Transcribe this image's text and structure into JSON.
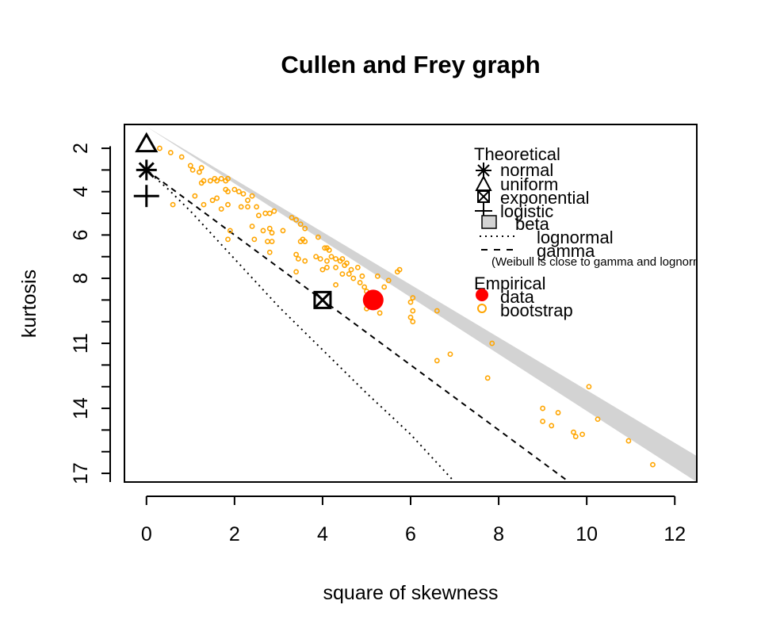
{
  "chart_data": {
    "type": "scatter",
    "title": "Cullen and Frey graph",
    "xlabel": "square of skewness",
    "ylabel": "kurtosis",
    "xlim": [
      -0.5,
      12.5
    ],
    "ylim": [
      17.4,
      0.9
    ],
    "x_ticks": [
      0,
      2,
      4,
      6,
      8,
      10,
      12
    ],
    "y_ticks": [
      2,
      4,
      6,
      8,
      11,
      14,
      17
    ],
    "y_minor_ticks": [
      3,
      5,
      7,
      9,
      10,
      12,
      13,
      15,
      16
    ],
    "beta_region": {
      "upper": [
        [
          0,
          1
        ],
        [
          12.5,
          16.2
        ]
      ],
      "lower": [
        [
          0,
          1
        ],
        [
          12.5,
          17.4
        ]
      ],
      "color": "#d3d3d3"
    },
    "lognormal_line": [
      [
        0,
        3
      ],
      [
        0.5,
        3.9
      ],
      [
        1,
        4.9
      ],
      [
        2,
        7.1
      ],
      [
        3,
        9.3
      ],
      [
        4,
        11.3
      ],
      [
        5,
        13.3
      ],
      [
        6,
        15.2
      ],
      [
        7,
        17.4
      ]
    ],
    "gamma_line": [
      [
        0,
        3
      ],
      [
        9.6,
        17.4
      ]
    ],
    "theoretical": {
      "normal": {
        "x": 0,
        "y": 3
      },
      "uniform": {
        "x": 0,
        "y": 1.8
      },
      "exponential": {
        "x": 4,
        "y": 9
      },
      "logistic": {
        "x": 0,
        "y": 4.2
      }
    },
    "observation": {
      "x": 5.15,
      "y": 9.0,
      "color": "#ff0000"
    },
    "bootstrap": {
      "color": "#ffa500",
      "points": [
        [
          0.3,
          2.0
        ],
        [
          0.55,
          2.2
        ],
        [
          0.8,
          2.4
        ],
        [
          1.0,
          2.8
        ],
        [
          1.05,
          3.0
        ],
        [
          1.2,
          3.1
        ],
        [
          1.25,
          2.9
        ],
        [
          1.25,
          3.6
        ],
        [
          1.3,
          3.5
        ],
        [
          1.45,
          3.5
        ],
        [
          1.55,
          3.4
        ],
        [
          1.6,
          3.5
        ],
        [
          1.7,
          3.4
        ],
        [
          1.8,
          3.5
        ],
        [
          1.85,
          3.4
        ],
        [
          1.8,
          3.9
        ],
        [
          1.85,
          4.0
        ],
        [
          2.0,
          3.9
        ],
        [
          2.1,
          4.0
        ],
        [
          2.2,
          4.1
        ],
        [
          2.3,
          4.4
        ],
        [
          2.4,
          4.2
        ],
        [
          2.15,
          4.7
        ],
        [
          2.3,
          4.7
        ],
        [
          2.5,
          4.7
        ],
        [
          2.55,
          5.1
        ],
        [
          2.7,
          5.0
        ],
        [
          2.8,
          5.0
        ],
        [
          2.9,
          4.9
        ],
        [
          0.6,
          4.6
        ],
        [
          1.5,
          4.4
        ],
        [
          1.6,
          4.3
        ],
        [
          1.7,
          4.8
        ],
        [
          1.85,
          4.6
        ],
        [
          1.1,
          4.2
        ],
        [
          1.3,
          4.6
        ],
        [
          1.9,
          5.8
        ],
        [
          1.85,
          6.2
        ],
        [
          2.4,
          5.6
        ],
        [
          2.45,
          6.2
        ],
        [
          2.65,
          5.8
        ],
        [
          2.8,
          5.7
        ],
        [
          2.85,
          5.9
        ],
        [
          2.75,
          6.3
        ],
        [
          2.85,
          6.3
        ],
        [
          2.8,
          6.8
        ],
        [
          3.1,
          5.8
        ],
        [
          3.3,
          5.2
        ],
        [
          3.4,
          5.3
        ],
        [
          3.5,
          5.5
        ],
        [
          3.6,
          5.7
        ],
        [
          3.5,
          6.3
        ],
        [
          3.55,
          6.2
        ],
        [
          3.6,
          6.3
        ],
        [
          3.4,
          6.9
        ],
        [
          3.45,
          7.1
        ],
        [
          3.6,
          7.2
        ],
        [
          3.4,
          7.7
        ],
        [
          3.9,
          6.1
        ],
        [
          4.05,
          6.6
        ],
        [
          4.1,
          6.6
        ],
        [
          4.15,
          6.7
        ],
        [
          3.85,
          7.0
        ],
        [
          3.95,
          7.1
        ],
        [
          4.1,
          7.2
        ],
        [
          4.2,
          7.0
        ],
        [
          4.3,
          7.1
        ],
        [
          4.4,
          7.2
        ],
        [
          4.45,
          7.1
        ],
        [
          4.5,
          7.4
        ],
        [
          4.55,
          7.3
        ],
        [
          4.0,
          7.6
        ],
        [
          4.1,
          7.5
        ],
        [
          4.3,
          7.5
        ],
        [
          4.45,
          7.8
        ],
        [
          4.6,
          7.8
        ],
        [
          4.65,
          7.6
        ],
        [
          4.8,
          7.5
        ],
        [
          4.7,
          8.0
        ],
        [
          4.9,
          7.9
        ],
        [
          4.85,
          8.2
        ],
        [
          4.95,
          8.4
        ],
        [
          5.0,
          8.6
        ],
        [
          5.25,
          7.9
        ],
        [
          5.4,
          8.4
        ],
        [
          5.5,
          8.1
        ],
        [
          5.7,
          7.7
        ],
        [
          5.75,
          7.6
        ],
        [
          4.3,
          8.3
        ],
        [
          5.0,
          9.4
        ],
        [
          5.3,
          9.6
        ],
        [
          6.0,
          9.1
        ],
        [
          6.05,
          8.9
        ],
        [
          6.05,
          9.5
        ],
        [
          6.0,
          9.8
        ],
        [
          6.05,
          10.0
        ],
        [
          6.6,
          9.5
        ],
        [
          7.85,
          11.0
        ],
        [
          6.6,
          11.8
        ],
        [
          6.9,
          11.5
        ],
        [
          7.75,
          12.6
        ],
        [
          9.0,
          14.0
        ],
        [
          9.0,
          14.6
        ],
        [
          9.2,
          14.8
        ],
        [
          9.35,
          14.2
        ],
        [
          9.7,
          15.1
        ],
        [
          9.75,
          15.3
        ],
        [
          9.9,
          15.2
        ],
        [
          10.05,
          13.0
        ],
        [
          10.25,
          14.5
        ],
        [
          10.95,
          15.5
        ],
        [
          11.5,
          16.6
        ]
      ]
    },
    "legend": {
      "position": "top-right",
      "theoretical_title": "Theoretical",
      "normal_label": "normal",
      "uniform_label": "uniform",
      "exponential_label": "exponential",
      "logistic_label": "logistic",
      "beta_label": "beta",
      "lognormal_label": "lognormal",
      "gamma_label": "gamma",
      "note": "(Weibull is close to gamma and lognormal)",
      "empirical_title": "Empirical",
      "data_label": "data",
      "bootstrap_label": "bootstrap"
    }
  }
}
